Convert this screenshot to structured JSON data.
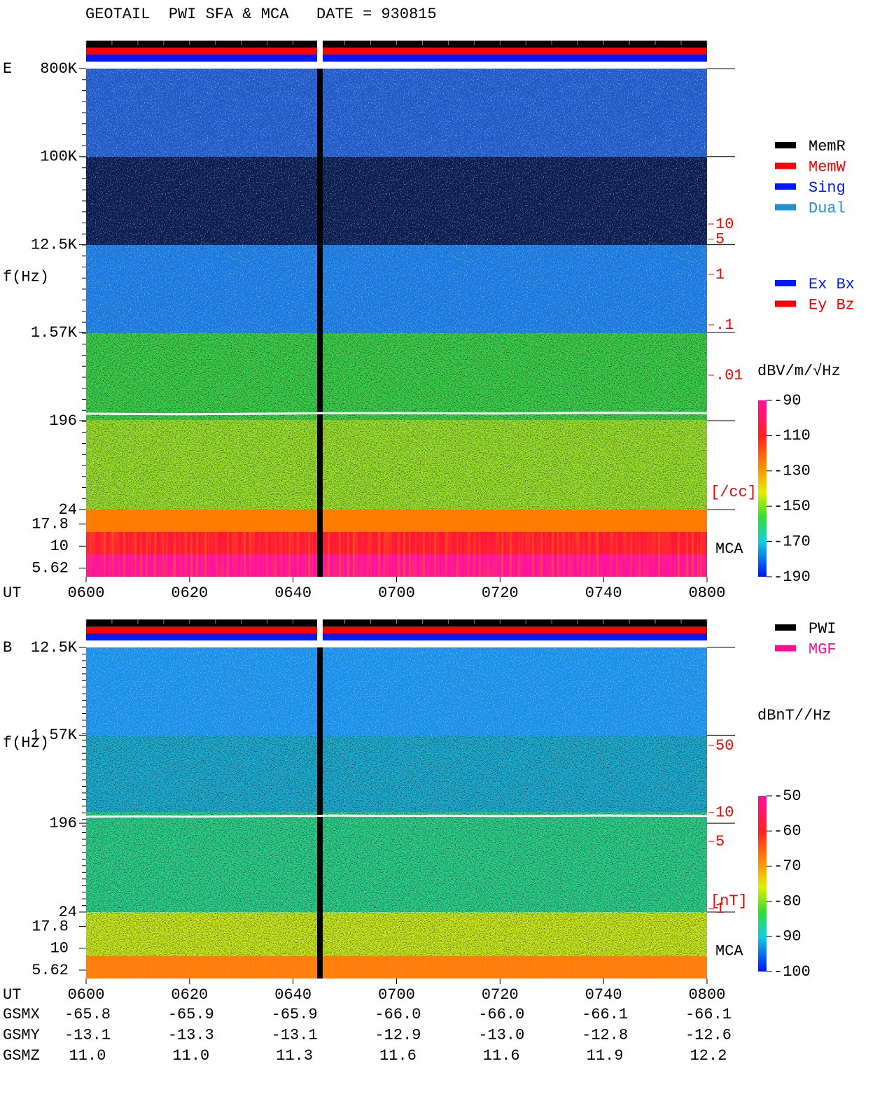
{
  "header": {
    "title": "GEOTAIL  PWI SFA & MCA   DATE = 930815"
  },
  "chart_data": [
    {
      "type": "spectrogram",
      "panel_label": "E",
      "ylabel": "f(Hz)",
      "xlabel": "UT",
      "xlim": [
        360,
        480
      ],
      "xticks": [
        {
          "value": 360,
          "label": "0600"
        },
        {
          "value": 380,
          "label": "0620"
        },
        {
          "value": 400,
          "label": "0640"
        },
        {
          "value": 420,
          "label": "0700"
        },
        {
          "value": 440,
          "label": "0720"
        },
        {
          "value": 460,
          "label": "0740"
        },
        {
          "value": 480,
          "label": "0800"
        }
      ],
      "log_y": true,
      "ylim": [
        24,
        800000
      ],
      "yticks": [
        {
          "value": 800000,
          "label": "800K"
        },
        {
          "value": 100000,
          "label": "100K"
        },
        {
          "value": 12500,
          "label": "12.5K"
        },
        {
          "value": 1570,
          "label": "1.57K"
        },
        196,
        24
      ],
      "mca_label": "MCA",
      "mca_ylim": [
        4.5,
        26
      ],
      "mca_yticks": [
        17.8,
        10,
        5.62
      ],
      "density_label": "[/cc]",
      "density_lim": [
        0.01,
        10
      ],
      "density_ticks": [
        10,
        5,
        1,
        {
          "value": 0.1,
          "label": ".1"
        },
        {
          "value": 0.01,
          "label": ".01"
        }
      ],
      "colorbar": {
        "label": "dBV/m/√Hz",
        "lim": [
          -190,
          -90
        ],
        "ticks": [
          -90,
          -110,
          -130,
          -150,
          -170,
          -190
        ]
      },
      "trace": {
        "color": "#ffffff",
        "x": [
          360,
          370,
          380,
          390,
          400,
          404,
          407,
          420,
          430,
          440,
          460,
          480
        ],
        "values": [
          231,
          229,
          228,
          230,
          232,
          233,
          234,
          234,
          233,
          232,
          236,
          234
        ]
      },
      "legend": [
        {
          "name": "MemR",
          "color": "#000000"
        },
        {
          "name": "MemW",
          "color": "#ff0000"
        },
        {
          "name": "Sing",
          "color": "#0018ff"
        },
        {
          "name": "Dual",
          "color": "#2090d0"
        }
      ],
      "legend2": [
        {
          "name": "Ex Bx",
          "color": "#0018ff"
        },
        {
          "name": "Ey Bz",
          "color": "#ff0000"
        }
      ]
    },
    {
      "type": "spectrogram",
      "panel_label": "B",
      "ylabel": "f(Hz)",
      "xlabel": "UT",
      "xlim": [
        360,
        480
      ],
      "xticks": [
        {
          "value": 360,
          "label": "0600"
        },
        {
          "value": 380,
          "label": "0620"
        },
        {
          "value": 400,
          "label": "0640"
        },
        {
          "value": 420,
          "label": "0700"
        },
        {
          "value": 440,
          "label": "0720"
        },
        {
          "value": 460,
          "label": "0740"
        },
        {
          "value": 480,
          "label": "0800"
        }
      ],
      "log_y": true,
      "ylim": [
        24,
        12500
      ],
      "yticks": [
        {
          "value": 12500,
          "label": "12.5K"
        },
        {
          "value": 1570,
          "label": "1.57K"
        },
        196,
        24
      ],
      "mca_label": "MCA",
      "mca_ylim": [
        4.5,
        26
      ],
      "mca_yticks": [
        17.8,
        10,
        5.62
      ],
      "density_label": "[nT]",
      "density_lim": [
        1,
        50
      ],
      "density_ticks": [
        50,
        10,
        5,
        1
      ],
      "colorbar": {
        "label": "dBnT//Hz",
        "lim": [
          -100,
          -50
        ],
        "ticks": [
          -50,
          -60,
          -70,
          -80,
          -90,
          -100
        ]
      },
      "trace": {
        "color": "#ffffff",
        "x": [
          360,
          370,
          380,
          390,
          400,
          404,
          407,
          420,
          430,
          440,
          460,
          480
        ],
        "values": [
          228,
          230,
          229,
          231,
          233,
          232,
          235,
          233,
          234,
          232,
          235,
          233
        ]
      },
      "legend": [
        {
          "name": "PWI",
          "color": "#000000"
        },
        {
          "name": "MGF",
          "color": "#ff1090"
        }
      ]
    }
  ],
  "orbit": {
    "rows": [
      {
        "label": "GSMX",
        "cells": [
          "-65.8",
          "-65.9",
          "-65.9",
          "-66.0",
          "-66.0",
          "-66.1",
          "-66.1"
        ]
      },
      {
        "label": "GSMY",
        "cells": [
          "-13.1",
          "-13.3",
          "-13.1",
          "-12.9",
          "-13.0",
          "-12.8",
          "-12.6"
        ]
      },
      {
        "label": "GSMZ",
        "cells": [
          "11.0",
          "11.0",
          "11.3",
          "11.6",
          "11.6",
          "11.9",
          "12.2"
        ]
      }
    ]
  }
}
